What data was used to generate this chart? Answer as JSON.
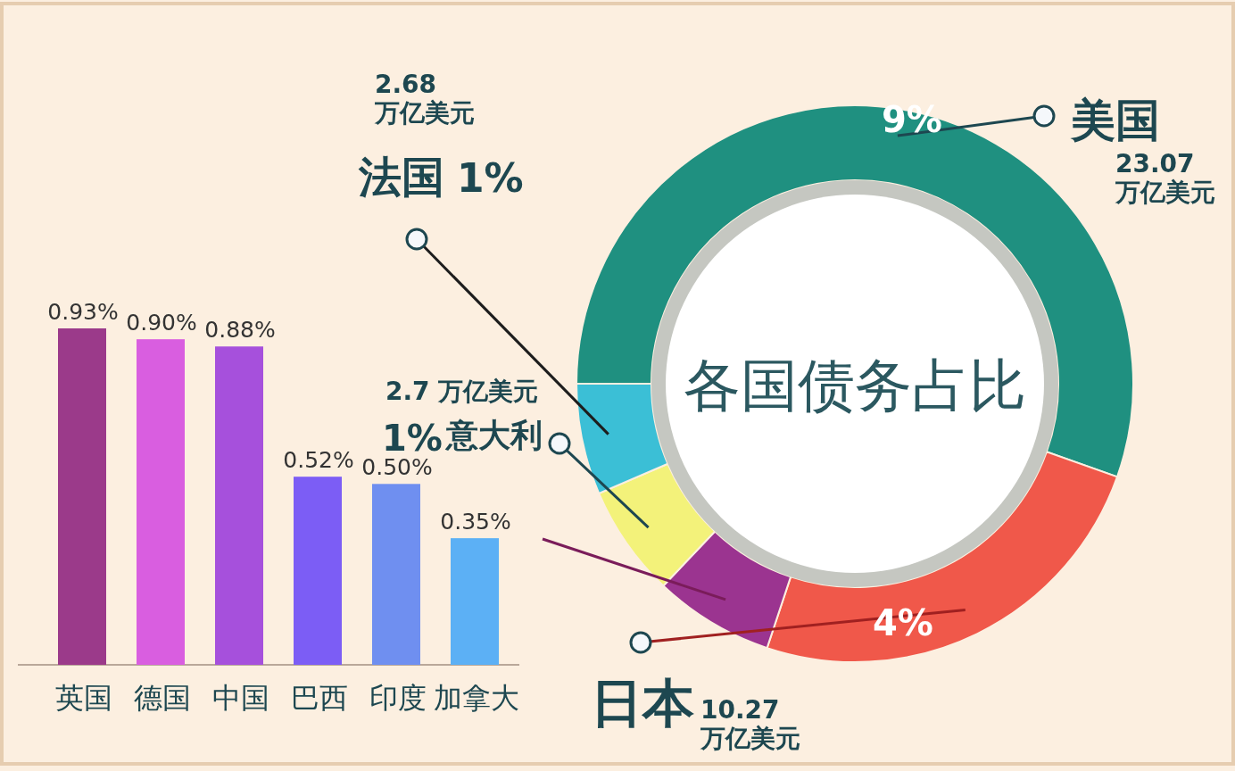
{
  "chart_data": [
    {
      "type": "bar",
      "categories": [
        "英国",
        "德国",
        "中国",
        "巴西",
        "印度",
        "加拿大"
      ],
      "values": [
        0.93,
        0.9,
        0.88,
        0.52,
        0.5,
        0.35
      ],
      "colors": [
        "#9b3a8a",
        "#d95ee0",
        "#a650dc",
        "#7c5df5",
        "#6f8ff0",
        "#5cb0f5"
      ],
      "value_labels": [
        "0.93%",
        "0.90%",
        "0.88%",
        "0.52%",
        "0.50%",
        "0.35%"
      ]
    },
    {
      "type": "donut",
      "title": "各国债务占比",
      "categories": [
        "美国",
        "日本",
        null,
        "意大利",
        "法国"
      ],
      "values": [
        23.07,
        10.27,
        2.9,
        2.7,
        2.68
      ],
      "colors": [
        "#1f9080",
        "#f0584a",
        "#9b3490",
        "#f3f27a",
        "#3bbfd6"
      ],
      "value_labels": [
        "23.07\n万亿美元",
        "10.27\n万亿美元",
        null,
        "2.7 万亿美元",
        "2.68\n万亿美元"
      ],
      "annotations": [
        "9%",
        "4%",
        "1%",
        "1%"
      ]
    }
  ]
}
